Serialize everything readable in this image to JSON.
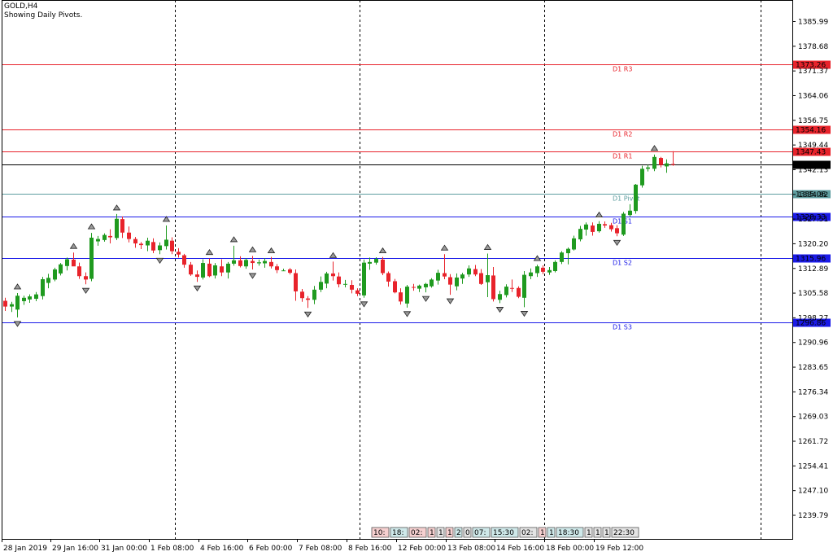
{
  "header": {
    "symbol": "GOLD,H4",
    "indicator": "Showing Daily Pivots."
  },
  "colors": {
    "bull": "#1f9a1f",
    "bear": "#e8232b",
    "resistance": "#e8232b",
    "pivot": "#5f9ea0",
    "support": "#1a1ae8",
    "current": "#000000"
  },
  "chart_data": {
    "type": "candlestick",
    "y_axis": {
      "range": [
        1236.0,
        1392.0
      ],
      "ticks": [
        "1385.99",
        "1378.68",
        "1371.37",
        "1364.06",
        "1356.75",
        "1349.44",
        "1342.13",
        "1334.82",
        "1327.51",
        "1320.20",
        "1312.89",
        "1305.58",
        "1298.27",
        "1290.96",
        "1283.65",
        "1276.34",
        "1269.03",
        "1261.72",
        "1254.41",
        "1247.10",
        "1239.79"
      ]
    },
    "x_labels": [
      "28 Jan 2019",
      "29 Jan 16:00",
      "31 Jan 00:00",
      "1 Feb 08:00",
      "4 Feb 16:00",
      "6 Feb 00:00",
      "7 Feb 08:00",
      "8 Feb 16:00",
      "12 Feb 00:00",
      "13 Feb 08:00",
      "14 Feb 16:00",
      "18 Feb 00:00",
      "19 Feb 12:00"
    ],
    "pivot_levels": [
      {
        "name": "D1 R3",
        "value": 1373.26,
        "label": "1373.26",
        "kind": "resistance"
      },
      {
        "name": "D1 R2",
        "value": 1354.16,
        "label": "1354.16",
        "kind": "resistance"
      },
      {
        "name": "D1 R1",
        "value": 1347.43,
        "label": "1347.43",
        "kind": "resistance"
      },
      {
        "name": "D1 Pivot",
        "value": 1335.06,
        "label": "1335.06",
        "kind": "pivot"
      },
      {
        "name": "D1 S1",
        "value": 1328.33,
        "label": "1328.33",
        "kind": "support"
      },
      {
        "name": "D1 S2",
        "value": 1315.96,
        "label": "1315.96",
        "kind": "support"
      },
      {
        "name": "D1 S3",
        "value": 1296.86,
        "label": "1296.86",
        "kind": "support"
      }
    ],
    "current_price": {
      "value": 1343.71,
      "label": "1343.71"
    },
    "candles": [
      {
        "o": 1303.3,
        "h": 1304.2,
        "l": 1300.3,
        "c": 1301.6
      },
      {
        "o": 1301.6,
        "h": 1303.0,
        "l": 1300.0,
        "c": 1302.3
      },
      {
        "o": 1300.7,
        "h": 1305.6,
        "l": 1298.4,
        "c": 1304.8
      },
      {
        "o": 1303.2,
        "h": 1304.8,
        "l": 1302.1,
        "c": 1304.2
      },
      {
        "o": 1303.7,
        "h": 1305.2,
        "l": 1302.7,
        "c": 1304.6
      },
      {
        "o": 1303.9,
        "h": 1305.9,
        "l": 1303.2,
        "c": 1305.2
      },
      {
        "o": 1304.7,
        "h": 1310.4,
        "l": 1303.7,
        "c": 1309.7
      },
      {
        "o": 1308.6,
        "h": 1311.3,
        "l": 1307.0,
        "c": 1310.1
      },
      {
        "o": 1309.6,
        "h": 1313.1,
        "l": 1309.1,
        "c": 1312.6
      },
      {
        "o": 1311.4,
        "h": 1314.5,
        "l": 1310.8,
        "c": 1314.1
      },
      {
        "o": 1313.6,
        "h": 1316.1,
        "l": 1312.3,
        "c": 1315.6
      },
      {
        "o": 1315.5,
        "h": 1317.6,
        "l": 1314.0,
        "c": 1313.5
      },
      {
        "o": 1313.5,
        "h": 1314.6,
        "l": 1309.8,
        "c": 1310.6
      },
      {
        "o": 1310.6,
        "h": 1311.7,
        "l": 1308.2,
        "c": 1309.6
      },
      {
        "o": 1309.8,
        "h": 1323.4,
        "l": 1309.1,
        "c": 1322.0
      },
      {
        "o": 1320.9,
        "h": 1322.5,
        "l": 1319.6,
        "c": 1321.6
      },
      {
        "o": 1321.3,
        "h": 1323.3,
        "l": 1320.8,
        "c": 1322.8
      },
      {
        "o": 1322.5,
        "h": 1324.5,
        "l": 1320.3,
        "c": 1322.1
      },
      {
        "o": 1321.9,
        "h": 1329.0,
        "l": 1321.3,
        "c": 1327.6
      },
      {
        "o": 1327.5,
        "h": 1328.3,
        "l": 1321.9,
        "c": 1323.5
      },
      {
        "o": 1323.5,
        "h": 1325.3,
        "l": 1320.6,
        "c": 1321.6
      },
      {
        "o": 1321.6,
        "h": 1322.2,
        "l": 1319.0,
        "c": 1320.3
      },
      {
        "o": 1320.2,
        "h": 1320.7,
        "l": 1318.6,
        "c": 1319.8
      },
      {
        "o": 1319.7,
        "h": 1322.0,
        "l": 1318.0,
        "c": 1321.1
      },
      {
        "o": 1320.7,
        "h": 1321.8,
        "l": 1317.4,
        "c": 1318.2
      },
      {
        "o": 1318.3,
        "h": 1320.6,
        "l": 1317.1,
        "c": 1319.7
      },
      {
        "o": 1319.5,
        "h": 1325.6,
        "l": 1318.5,
        "c": 1321.4
      },
      {
        "o": 1321.1,
        "h": 1322.1,
        "l": 1317.1,
        "c": 1318.0
      },
      {
        "o": 1317.8,
        "h": 1318.9,
        "l": 1316.1,
        "c": 1317.0
      },
      {
        "o": 1316.8,
        "h": 1317.2,
        "l": 1313.1,
        "c": 1314.0
      },
      {
        "o": 1314.0,
        "h": 1314.8,
        "l": 1310.7,
        "c": 1311.1
      },
      {
        "o": 1311.1,
        "h": 1312.3,
        "l": 1308.9,
        "c": 1310.4
      },
      {
        "o": 1310.2,
        "h": 1315.6,
        "l": 1309.6,
        "c": 1314.5
      },
      {
        "o": 1314.3,
        "h": 1315.8,
        "l": 1310.3,
        "c": 1310.6
      },
      {
        "o": 1310.8,
        "h": 1314.5,
        "l": 1309.9,
        "c": 1313.8
      },
      {
        "o": 1313.5,
        "h": 1315.6,
        "l": 1310.6,
        "c": 1311.7
      },
      {
        "o": 1311.7,
        "h": 1314.8,
        "l": 1309.9,
        "c": 1314.3
      },
      {
        "o": 1314.3,
        "h": 1319.6,
        "l": 1313.7,
        "c": 1315.3
      },
      {
        "o": 1315.3,
        "h": 1316.5,
        "l": 1313.2,
        "c": 1313.6
      },
      {
        "o": 1313.5,
        "h": 1315.9,
        "l": 1312.8,
        "c": 1315.4
      },
      {
        "o": 1315.1,
        "h": 1316.6,
        "l": 1312.6,
        "c": 1314.5
      },
      {
        "o": 1314.4,
        "h": 1315.5,
        "l": 1313.7,
        "c": 1314.7
      },
      {
        "o": 1314.4,
        "h": 1315.9,
        "l": 1313.1,
        "c": 1315.1
      },
      {
        "o": 1314.8,
        "h": 1316.3,
        "l": 1312.9,
        "c": 1313.5
      },
      {
        "o": 1313.5,
        "h": 1314.2,
        "l": 1311.5,
        "c": 1312.4
      },
      {
        "o": 1312.3,
        "h": 1312.8,
        "l": 1312.1,
        "c": 1312.3
      },
      {
        "o": 1312.6,
        "h": 1313.0,
        "l": 1311.1,
        "c": 1311.6
      },
      {
        "o": 1311.5,
        "h": 1312.6,
        "l": 1303.3,
        "c": 1306.1
      },
      {
        "o": 1306.0,
        "h": 1306.8,
        "l": 1303.0,
        "c": 1304.1
      },
      {
        "o": 1304.0,
        "h": 1304.7,
        "l": 1301.2,
        "c": 1303.6
      },
      {
        "o": 1303.6,
        "h": 1307.7,
        "l": 1302.3,
        "c": 1306.6
      },
      {
        "o": 1306.6,
        "h": 1310.5,
        "l": 1305.9,
        "c": 1308.9
      },
      {
        "o": 1308.4,
        "h": 1311.9,
        "l": 1307.0,
        "c": 1311.4
      },
      {
        "o": 1311.4,
        "h": 1314.9,
        "l": 1309.3,
        "c": 1310.6
      },
      {
        "o": 1310.5,
        "h": 1311.7,
        "l": 1307.3,
        "c": 1308.2
      },
      {
        "o": 1308.2,
        "h": 1309.5,
        "l": 1307.3,
        "c": 1308.3
      },
      {
        "o": 1308.0,
        "h": 1309.4,
        "l": 1305.5,
        "c": 1306.6
      },
      {
        "o": 1306.4,
        "h": 1307.0,
        "l": 1304.7,
        "c": 1305.4
      },
      {
        "o": 1304.9,
        "h": 1315.5,
        "l": 1304.2,
        "c": 1314.6
      },
      {
        "o": 1314.3,
        "h": 1316.1,
        "l": 1312.5,
        "c": 1314.8
      },
      {
        "o": 1314.6,
        "h": 1316.2,
        "l": 1314.0,
        "c": 1315.7
      },
      {
        "o": 1315.5,
        "h": 1316.3,
        "l": 1310.9,
        "c": 1311.5
      },
      {
        "o": 1311.5,
        "h": 1312.0,
        "l": 1307.5,
        "c": 1309.0
      },
      {
        "o": 1309.1,
        "h": 1309.8,
        "l": 1305.5,
        "c": 1305.8
      },
      {
        "o": 1305.8,
        "h": 1307.0,
        "l": 1302.2,
        "c": 1303.1
      },
      {
        "o": 1302.5,
        "h": 1308.0,
        "l": 1301.3,
        "c": 1307.5
      },
      {
        "o": 1307.4,
        "h": 1308.3,
        "l": 1306.3,
        "c": 1307.2
      },
      {
        "o": 1306.9,
        "h": 1308.1,
        "l": 1305.9,
        "c": 1307.8
      },
      {
        "o": 1307.3,
        "h": 1308.6,
        "l": 1305.8,
        "c": 1308.3
      },
      {
        "o": 1307.6,
        "h": 1310.0,
        "l": 1307.2,
        "c": 1309.6
      },
      {
        "o": 1309.3,
        "h": 1312.5,
        "l": 1308.1,
        "c": 1311.6
      },
      {
        "o": 1311.5,
        "h": 1317.1,
        "l": 1309.7,
        "c": 1310.5
      },
      {
        "o": 1310.3,
        "h": 1311.2,
        "l": 1305.1,
        "c": 1308.1
      },
      {
        "o": 1307.6,
        "h": 1311.4,
        "l": 1306.4,
        "c": 1310.2
      },
      {
        "o": 1309.9,
        "h": 1311.6,
        "l": 1308.3,
        "c": 1311.1
      },
      {
        "o": 1311.1,
        "h": 1313.8,
        "l": 1310.4,
        "c": 1312.9
      },
      {
        "o": 1312.7,
        "h": 1313.9,
        "l": 1310.6,
        "c": 1311.1
      },
      {
        "o": 1311.5,
        "h": 1312.7,
        "l": 1308.0,
        "c": 1308.3
      },
      {
        "o": 1308.8,
        "h": 1317.3,
        "l": 1304.4,
        "c": 1310.9
      },
      {
        "o": 1310.8,
        "h": 1313.3,
        "l": 1303.1,
        "c": 1303.8
      },
      {
        "o": 1303.6,
        "h": 1306.3,
        "l": 1302.6,
        "c": 1305.3
      },
      {
        "o": 1305.0,
        "h": 1308.2,
        "l": 1304.3,
        "c": 1307.5
      },
      {
        "o": 1307.1,
        "h": 1309.6,
        "l": 1305.9,
        "c": 1307.0
      },
      {
        "o": 1307.1,
        "h": 1307.6,
        "l": 1304.1,
        "c": 1304.5
      },
      {
        "o": 1304.2,
        "h": 1312.1,
        "l": 1301.4,
        "c": 1311.0
      },
      {
        "o": 1310.6,
        "h": 1312.9,
        "l": 1309.7,
        "c": 1311.7
      },
      {
        "o": 1311.5,
        "h": 1314.0,
        "l": 1310.4,
        "c": 1313.5
      },
      {
        "o": 1313.1,
        "h": 1313.8,
        "l": 1311.2,
        "c": 1311.9
      },
      {
        "o": 1311.7,
        "h": 1313.3,
        "l": 1311.0,
        "c": 1312.4
      },
      {
        "o": 1312.1,
        "h": 1315.3,
        "l": 1311.7,
        "c": 1314.8
      },
      {
        "o": 1314.8,
        "h": 1318.0,
        "l": 1314.2,
        "c": 1317.6
      },
      {
        "o": 1317.4,
        "h": 1319.1,
        "l": 1314.1,
        "c": 1318.7
      },
      {
        "o": 1318.5,
        "h": 1322.6,
        "l": 1318.2,
        "c": 1321.8
      },
      {
        "o": 1321.5,
        "h": 1325.5,
        "l": 1320.9,
        "c": 1324.6
      },
      {
        "o": 1324.4,
        "h": 1326.5,
        "l": 1322.6,
        "c": 1325.9
      },
      {
        "o": 1325.6,
        "h": 1326.5,
        "l": 1322.6,
        "c": 1323.7
      },
      {
        "o": 1323.9,
        "h": 1326.9,
        "l": 1323.5,
        "c": 1326.1
      },
      {
        "o": 1326.0,
        "h": 1326.8,
        "l": 1324.9,
        "c": 1325.6
      },
      {
        "o": 1325.7,
        "h": 1326.4,
        "l": 1323.8,
        "c": 1324.5
      },
      {
        "o": 1324.8,
        "h": 1325.7,
        "l": 1322.4,
        "c": 1323.3
      },
      {
        "o": 1322.9,
        "h": 1329.6,
        "l": 1322.5,
        "c": 1329.1
      },
      {
        "o": 1328.7,
        "h": 1331.9,
        "l": 1328.1,
        "c": 1330.0
      },
      {
        "o": 1329.9,
        "h": 1337.9,
        "l": 1329.1,
        "c": 1337.7
      },
      {
        "o": 1337.5,
        "h": 1343.3,
        "l": 1336.8,
        "c": 1342.4
      },
      {
        "o": 1342.4,
        "h": 1343.6,
        "l": 1341.6,
        "c": 1342.8
      },
      {
        "o": 1342.4,
        "h": 1346.6,
        "l": 1341.7,
        "c": 1345.9
      },
      {
        "o": 1345.6,
        "h": 1345.9,
        "l": 1342.8,
        "c": 1343.5
      },
      {
        "o": 1343.1,
        "h": 1345.2,
        "l": 1341.2,
        "c": 1344.0
      },
      {
        "o": 1343.8,
        "h": 1347.6,
        "l": 1343.3,
        "c": 1343.7
      }
    ]
  },
  "period_separators": 4,
  "price_boxes": [
    "10:",
    "18:",
    "02:",
    "1",
    "1",
    "1",
    "2",
    "0",
    "07:",
    "15:30",
    "02:",
    "1",
    "1",
    "18:30",
    "1",
    "1",
    "1",
    "22:30"
  ]
}
